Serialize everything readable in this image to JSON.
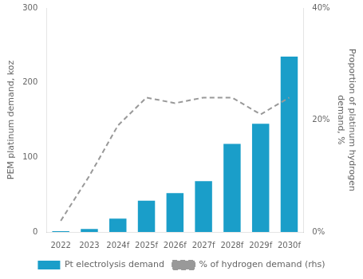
{
  "chart_data": {
    "type": "bar",
    "categories": [
      "2022",
      "2023",
      "2024f",
      "2025f",
      "2026f",
      "2027f",
      "2028f",
      "2029f",
      "2030f"
    ],
    "series": [
      {
        "name": "Pt electrolysis demand",
        "type": "bar",
        "color": "#1a9ec9",
        "values": [
          1,
          4,
          18,
          42,
          52,
          68,
          118,
          145,
          235
        ]
      },
      {
        "name": "% of hydrogen demand (rhs)",
        "type": "line",
        "color": "#999999",
        "line_style": "dashed",
        "marker": "none",
        "axis": "y2",
        "values": [
          2.0,
          10.0,
          19.0,
          24.0,
          23.0,
          24.0,
          24.0,
          21.0,
          24.0
        ]
      }
    ],
    "ylabel": "PEM platinum demand, koz",
    "y2label": "Proportion of platinum hydrogen\ndemand, %",
    "ylim": [
      0,
      300
    ],
    "yticks": [
      0,
      100,
      200,
      300
    ],
    "y2lim": [
      0,
      40
    ],
    "y2ticks": [
      {
        "value": 0,
        "label": "0%"
      },
      {
        "value": 20,
        "label": "20%"
      },
      {
        "value": 40,
        "label": "40%"
      }
    ],
    "grid": false,
    "legend": "bottom"
  }
}
